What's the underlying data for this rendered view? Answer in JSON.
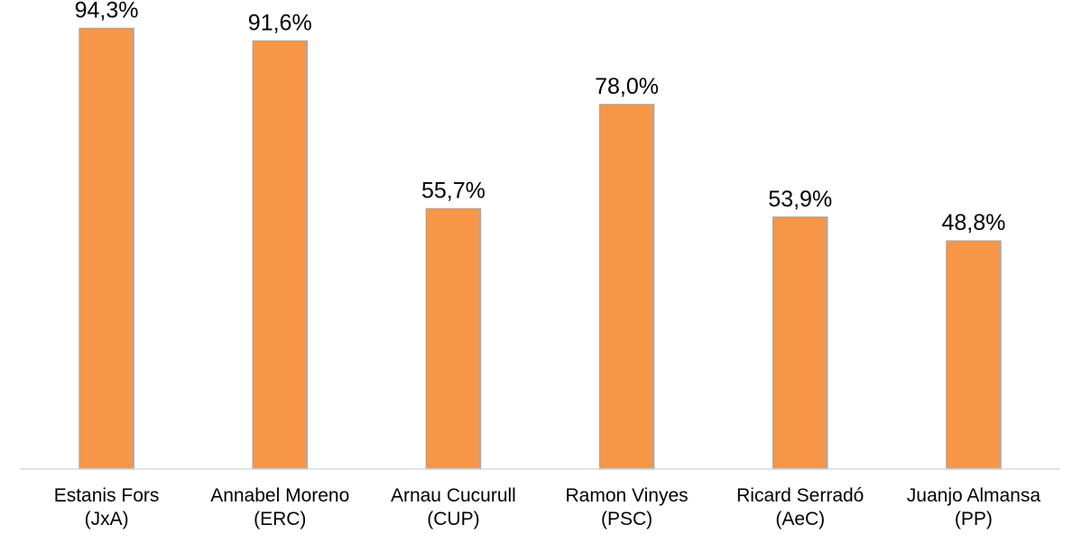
{
  "colors": {
    "bar_fill": "#F79646",
    "bar_stroke": "#A6A6A6",
    "axis": "#D9D9D9",
    "text": "#000000"
  },
  "chart_data": {
    "type": "bar",
    "categories": [
      [
        "Estanis Fors",
        "(JxA)"
      ],
      [
        "Annabel Moreno",
        "(ERC)"
      ],
      [
        "Arnau Cucurull",
        "(CUP)"
      ],
      [
        "Ramon Vinyes",
        "(PSC)"
      ],
      [
        "Ricard Serradó",
        "(AeC)"
      ],
      [
        "Juanjo Almansa",
        "(PP)"
      ]
    ],
    "values": [
      94.3,
      91.6,
      55.7,
      78.0,
      53.9,
      48.8
    ],
    "data_labels": [
      "94,3%",
      "91,6%",
      "55,7%",
      "78,0%",
      "53,9%",
      "48,8%"
    ],
    "title": "",
    "xlabel": "",
    "ylabel": "",
    "ylim": [
      0,
      100
    ],
    "grid": false,
    "legend": "none"
  }
}
